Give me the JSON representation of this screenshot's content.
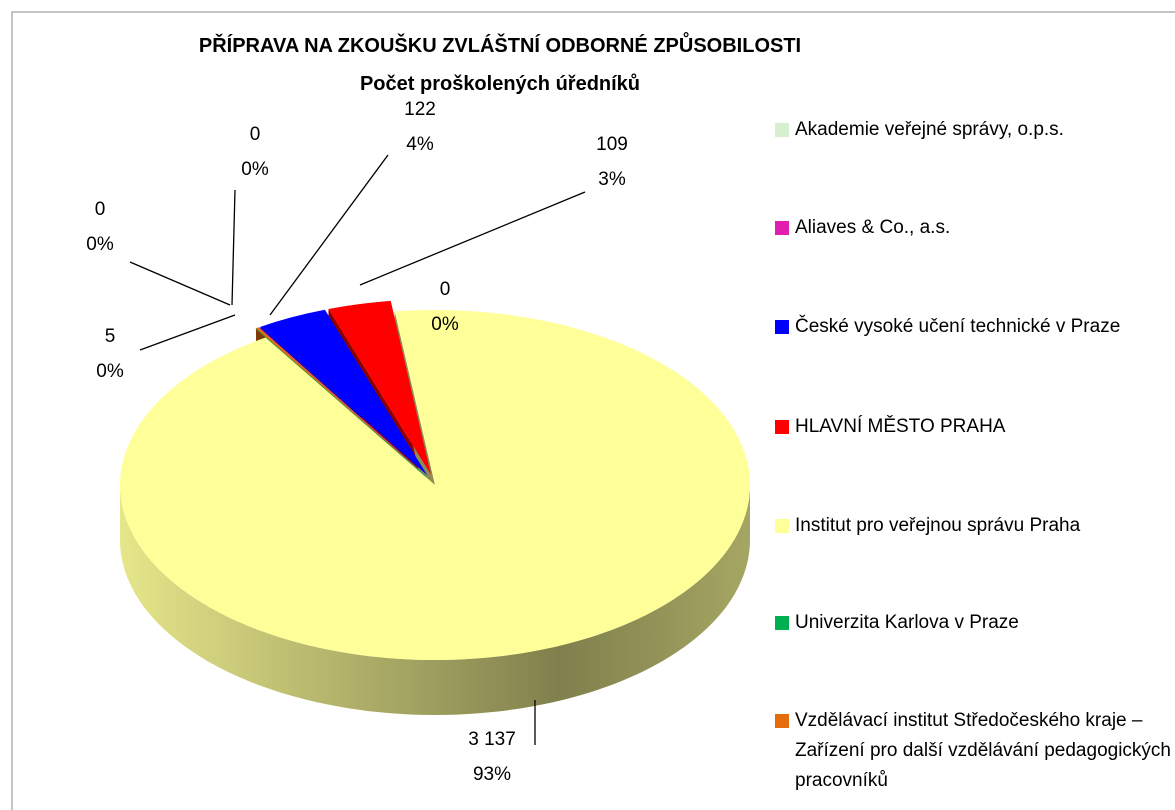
{
  "chart_data": {
    "type": "pie3d",
    "title": "PŘÍPRAVA NA ZKOUŠKU ZVLÁŠTNÍ ODBORNÉ ZPŮSOBILOSTI",
    "subtitle": "Počet proškolených úředníků",
    "categories": [
      "Akademie veřejné správy, o.p.s.",
      "Aliaves & Co., a.s.",
      "České vysoké učení technické v Praze",
      "HLAVNÍ MĚSTO PRAHA",
      "Institut pro veřejnou správu Praha",
      "Univerzita Karlova v Praze",
      "Vzdělávací institut Středočeského kraje – Zařízení pro další vzdělávání pedagogických pracovníků"
    ],
    "values": [
      0,
      0,
      122,
      109,
      3137,
      0,
      5
    ],
    "value_labels": [
      "0",
      "0",
      "122",
      "109",
      "3 137",
      "0",
      "5"
    ],
    "percent_labels": [
      "0%",
      "0%",
      "4%",
      "3%",
      "93%",
      "0%",
      "0%"
    ],
    "colors": [
      "#d6f0cf",
      "#e01fb0",
      "#0000ff",
      "#ff0000",
      "#ffff99",
      "#00b050",
      "#e46c0a"
    ],
    "legend": "right"
  }
}
